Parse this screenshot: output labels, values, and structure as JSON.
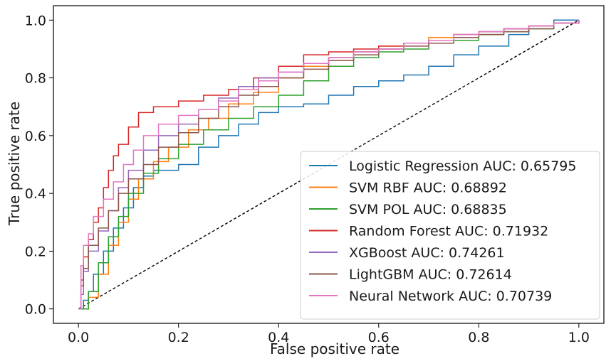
{
  "chart_data": {
    "type": "line",
    "xlabel": "False positive rate",
    "ylabel": "True positive rate",
    "xlim": [
      -0.05,
      1.05
    ],
    "ylim": [
      -0.05,
      1.05
    ],
    "xticks": [
      "0.0",
      "0.2",
      "0.4",
      "0.6",
      "0.8",
      "1.0"
    ],
    "yticks": [
      "0.0",
      "0.2",
      "0.4",
      "0.6",
      "0.8",
      "1.0"
    ],
    "legend_position": "lower-right",
    "grid": false,
    "baseline": {
      "x": [
        0,
        1
      ],
      "y": [
        0,
        1
      ],
      "style": "dashed",
      "color": "#000000"
    },
    "series": [
      {
        "name": "Logistic Regression AUC: 0.65795",
        "color": "#1f77b4",
        "x": [
          0,
          0.01,
          0.02,
          0.03,
          0.05,
          0.07,
          0.09,
          0.11,
          0.13,
          0.15,
          0.2,
          0.24,
          0.28,
          0.32,
          0.36,
          0.4,
          0.45,
          0.5,
          0.55,
          0.6,
          0.65,
          0.7,
          0.75,
          0.8,
          0.86,
          0.9,
          0.95,
          1.0
        ],
        "y": [
          0,
          0.03,
          0.06,
          0.12,
          0.2,
          0.28,
          0.35,
          0.42,
          0.46,
          0.48,
          0.5,
          0.56,
          0.6,
          0.64,
          0.68,
          0.7,
          0.71,
          0.74,
          0.77,
          0.79,
          0.81,
          0.84,
          0.88,
          0.91,
          0.95,
          0.98,
          1.0,
          1.0
        ]
      },
      {
        "name": "SVM RBF AUC: 0.68892",
        "color": "#ff7f0e",
        "x": [
          0,
          0.02,
          0.04,
          0.06,
          0.08,
          0.1,
          0.12,
          0.15,
          0.18,
          0.22,
          0.26,
          0.3,
          0.35,
          0.4,
          0.45,
          0.5,
          0.55,
          0.6,
          0.65,
          0.7,
          0.75,
          0.8,
          0.85,
          0.9,
          0.95,
          1.0
        ],
        "y": [
          0,
          0.04,
          0.12,
          0.22,
          0.3,
          0.38,
          0.45,
          0.51,
          0.56,
          0.62,
          0.66,
          0.71,
          0.75,
          0.8,
          0.84,
          0.87,
          0.89,
          0.91,
          0.92,
          0.94,
          0.95,
          0.96,
          0.97,
          0.98,
          0.99,
          1.0
        ]
      },
      {
        "name": "SVM POL AUC: 0.68835",
        "color": "#2ca02c",
        "x": [
          0,
          0.02,
          0.04,
          0.06,
          0.08,
          0.1,
          0.13,
          0.16,
          0.2,
          0.25,
          0.3,
          0.35,
          0.4,
          0.45,
          0.5,
          0.55,
          0.6,
          0.65,
          0.7,
          0.75,
          0.8,
          0.85,
          0.9,
          0.95,
          1.0
        ],
        "y": [
          0,
          0.06,
          0.16,
          0.25,
          0.32,
          0.4,
          0.47,
          0.52,
          0.57,
          0.62,
          0.66,
          0.7,
          0.74,
          0.79,
          0.84,
          0.87,
          0.89,
          0.9,
          0.92,
          0.93,
          0.95,
          0.96,
          0.97,
          0.99,
          1.0
        ]
      },
      {
        "name": "Random Forest AUC: 0.71932",
        "color": "#d62728",
        "x": [
          0,
          0.005,
          0.01,
          0.02,
          0.03,
          0.04,
          0.05,
          0.06,
          0.07,
          0.08,
          0.1,
          0.12,
          0.15,
          0.2,
          0.25,
          0.3,
          0.35,
          0.4,
          0.45,
          0.5,
          0.55,
          0.6,
          0.65,
          0.7,
          0.75,
          0.8,
          0.85,
          0.9,
          0.95,
          1.0
        ],
        "y": [
          0,
          0.1,
          0.18,
          0.24,
          0.3,
          0.35,
          0.42,
          0.48,
          0.53,
          0.57,
          0.63,
          0.68,
          0.7,
          0.72,
          0.74,
          0.76,
          0.8,
          0.84,
          0.88,
          0.89,
          0.9,
          0.91,
          0.92,
          0.93,
          0.95,
          0.96,
          0.97,
          0.98,
          0.99,
          1.0
        ]
      },
      {
        "name": "XGBoost AUC: 0.74261",
        "color": "#9467bd",
        "x": [
          0,
          0.005,
          0.01,
          0.02,
          0.04,
          0.06,
          0.08,
          0.1,
          0.13,
          0.16,
          0.2,
          0.24,
          0.28,
          0.32,
          0.36,
          0.4,
          0.45,
          0.5,
          0.55,
          0.6,
          0.65,
          0.7,
          0.75,
          0.8,
          0.85,
          0.9,
          0.95,
          1.0
        ],
        "y": [
          0,
          0.05,
          0.13,
          0.2,
          0.27,
          0.34,
          0.42,
          0.48,
          0.55,
          0.6,
          0.64,
          0.69,
          0.73,
          0.77,
          0.8,
          0.82,
          0.85,
          0.87,
          0.89,
          0.9,
          0.92,
          0.93,
          0.95,
          0.96,
          0.97,
          0.98,
          0.99,
          1.0
        ]
      },
      {
        "name": "LightGBM AUC: 0.72614",
        "color": "#8c564b",
        "x": [
          0,
          0.005,
          0.01,
          0.02,
          0.04,
          0.06,
          0.08,
          0.1,
          0.13,
          0.16,
          0.2,
          0.24,
          0.28,
          0.32,
          0.36,
          0.4,
          0.45,
          0.5,
          0.55,
          0.6,
          0.65,
          0.7,
          0.75,
          0.8,
          0.85,
          0.9,
          0.95,
          1.0
        ],
        "y": [
          0,
          0.08,
          0.14,
          0.22,
          0.28,
          0.34,
          0.4,
          0.45,
          0.5,
          0.56,
          0.61,
          0.66,
          0.7,
          0.74,
          0.77,
          0.8,
          0.83,
          0.86,
          0.88,
          0.9,
          0.91,
          0.92,
          0.94,
          0.95,
          0.96,
          0.97,
          0.99,
          1.0
        ]
      },
      {
        "name": "Neural Network AUC: 0.70739",
        "color": "#e377c2",
        "x": [
          0,
          0.005,
          0.01,
          0.02,
          0.03,
          0.05,
          0.07,
          0.09,
          0.11,
          0.13,
          0.16,
          0.2,
          0.24,
          0.28,
          0.32,
          0.36,
          0.4,
          0.45,
          0.5,
          0.55,
          0.6,
          0.65,
          0.7,
          0.75,
          0.8,
          0.85,
          0.9,
          0.95,
          1.0
        ],
        "y": [
          0,
          0.15,
          0.22,
          0.26,
          0.32,
          0.38,
          0.44,
          0.5,
          0.55,
          0.6,
          0.64,
          0.67,
          0.69,
          0.72,
          0.76,
          0.79,
          0.82,
          0.85,
          0.87,
          0.89,
          0.9,
          0.92,
          0.93,
          0.95,
          0.96,
          0.97,
          0.98,
          0.99,
          1.0
        ]
      }
    ]
  }
}
